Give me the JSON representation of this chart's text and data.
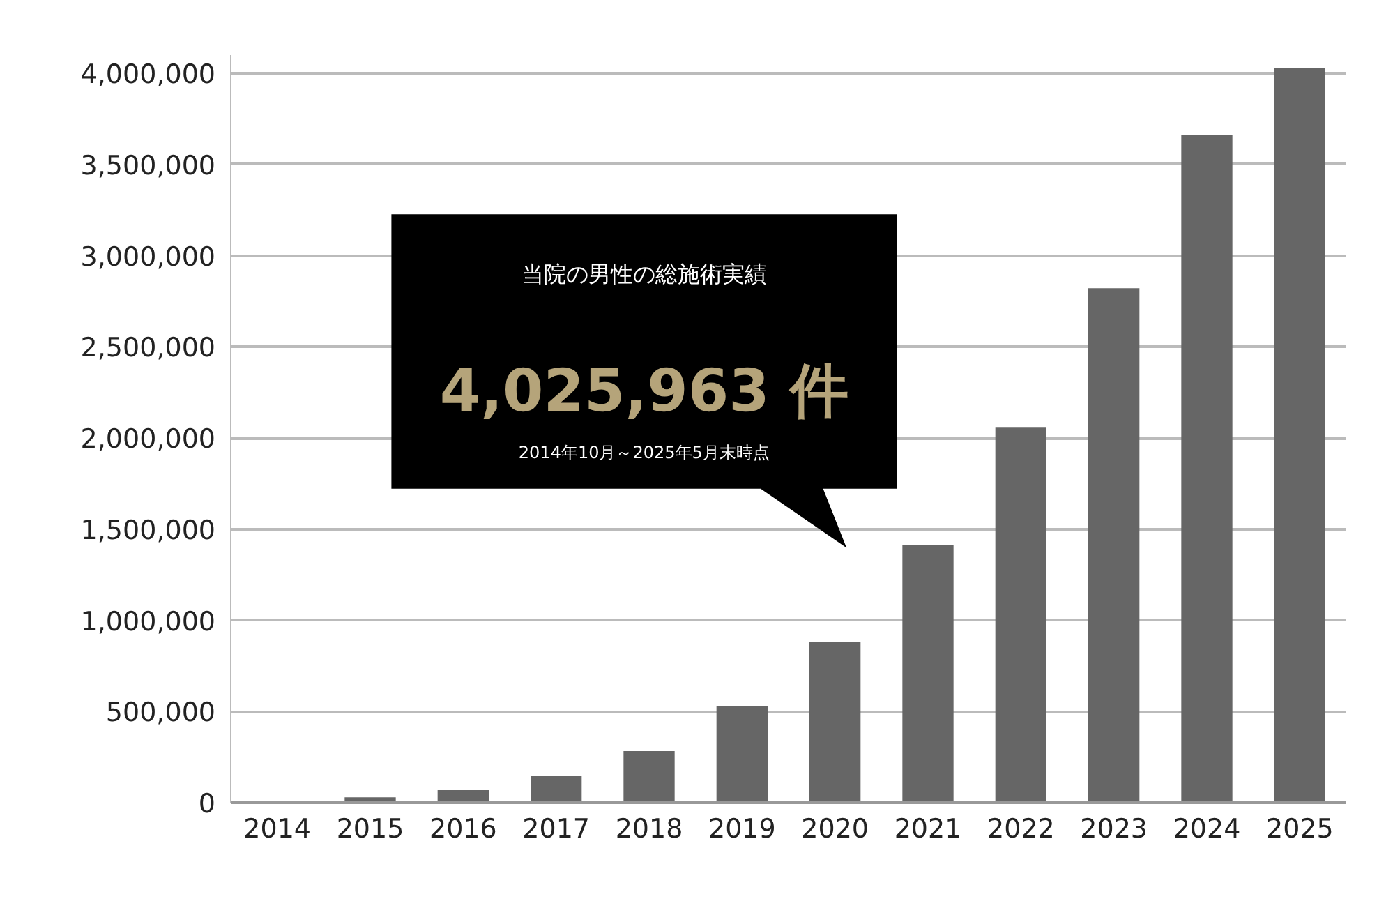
{
  "chart_data": {
    "type": "bar",
    "categories": [
      "2014",
      "2015",
      "2016",
      "2017",
      "2018",
      "2019",
      "2020",
      "2021",
      "2022",
      "2023",
      "2024",
      "2025"
    ],
    "values": [
      0,
      30000,
      69000,
      145000,
      283000,
      528000,
      880000,
      1415000,
      2057000,
      2822000,
      3663000,
      4030000
    ],
    "color": "#666666",
    "ylim": [
      0,
      4100000
    ],
    "yticks": [
      {
        "value": 0,
        "label": "0"
      },
      {
        "value": 500000,
        "label": "500,000"
      },
      {
        "value": 1000000,
        "label": "1,000,000"
      },
      {
        "value": 1500000,
        "label": "1,500,000"
      },
      {
        "value": 2000000,
        "label": "2,000,000"
      },
      {
        "value": 2500000,
        "label": "2,500,000"
      },
      {
        "value": 3000000,
        "label": "3,000,000"
      },
      {
        "value": 3500000,
        "label": "3,500,000"
      },
      {
        "value": 4000000,
        "label": "4,000,000"
      }
    ],
    "grid": "y",
    "annotations": [
      "当院の男性の総施術実績",
      "4,025,963 件",
      "2014年10月～2025年5月末時点"
    ]
  }
}
